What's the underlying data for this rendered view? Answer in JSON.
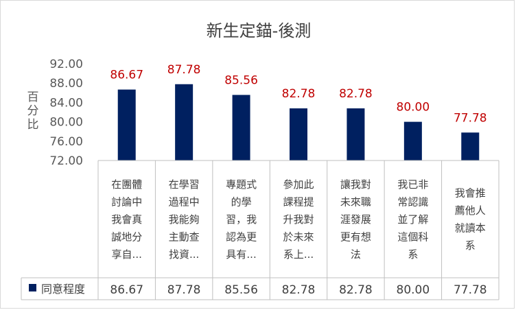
{
  "chart_data": {
    "type": "bar",
    "title": "新生定錨-後測",
    "ylabel": "百分比",
    "ylim": [
      72,
      92
    ],
    "yticks": [
      "72.00",
      "76.00",
      "80.00",
      "84.00",
      "88.00",
      "92.00"
    ],
    "grid": false,
    "categories": [
      [
        "在團體",
        "討論中",
        "我會真",
        "誠地分",
        "享自..."
      ],
      [
        "在學習",
        "過程中",
        "我能夠",
        "主動查",
        "找資..."
      ],
      [
        "專題式",
        "的學",
        "習，我",
        "認為更",
        "具有..."
      ],
      [
        "參加此",
        "課程提",
        "升我對",
        "於未來",
        "系上..."
      ],
      [
        "讓我對",
        "未來職",
        "涯發展",
        "更有想",
        "法"
      ],
      [
        "我已非",
        "常認識",
        "並了解",
        "這個科",
        "系"
      ],
      [
        "我會推",
        "薦他人",
        "就讀本",
        "系"
      ]
    ],
    "series": [
      {
        "name": "同意程度",
        "values": [
          86.67,
          87.78,
          85.56,
          82.78,
          82.78,
          80.0,
          77.78
        ],
        "labels": [
          "86.67",
          "87.78",
          "85.56",
          "82.78",
          "82.78",
          "80.00",
          "77.78"
        ],
        "color": "#002060"
      }
    ],
    "data_label_color": "#c00000",
    "legend": "data-table"
  }
}
